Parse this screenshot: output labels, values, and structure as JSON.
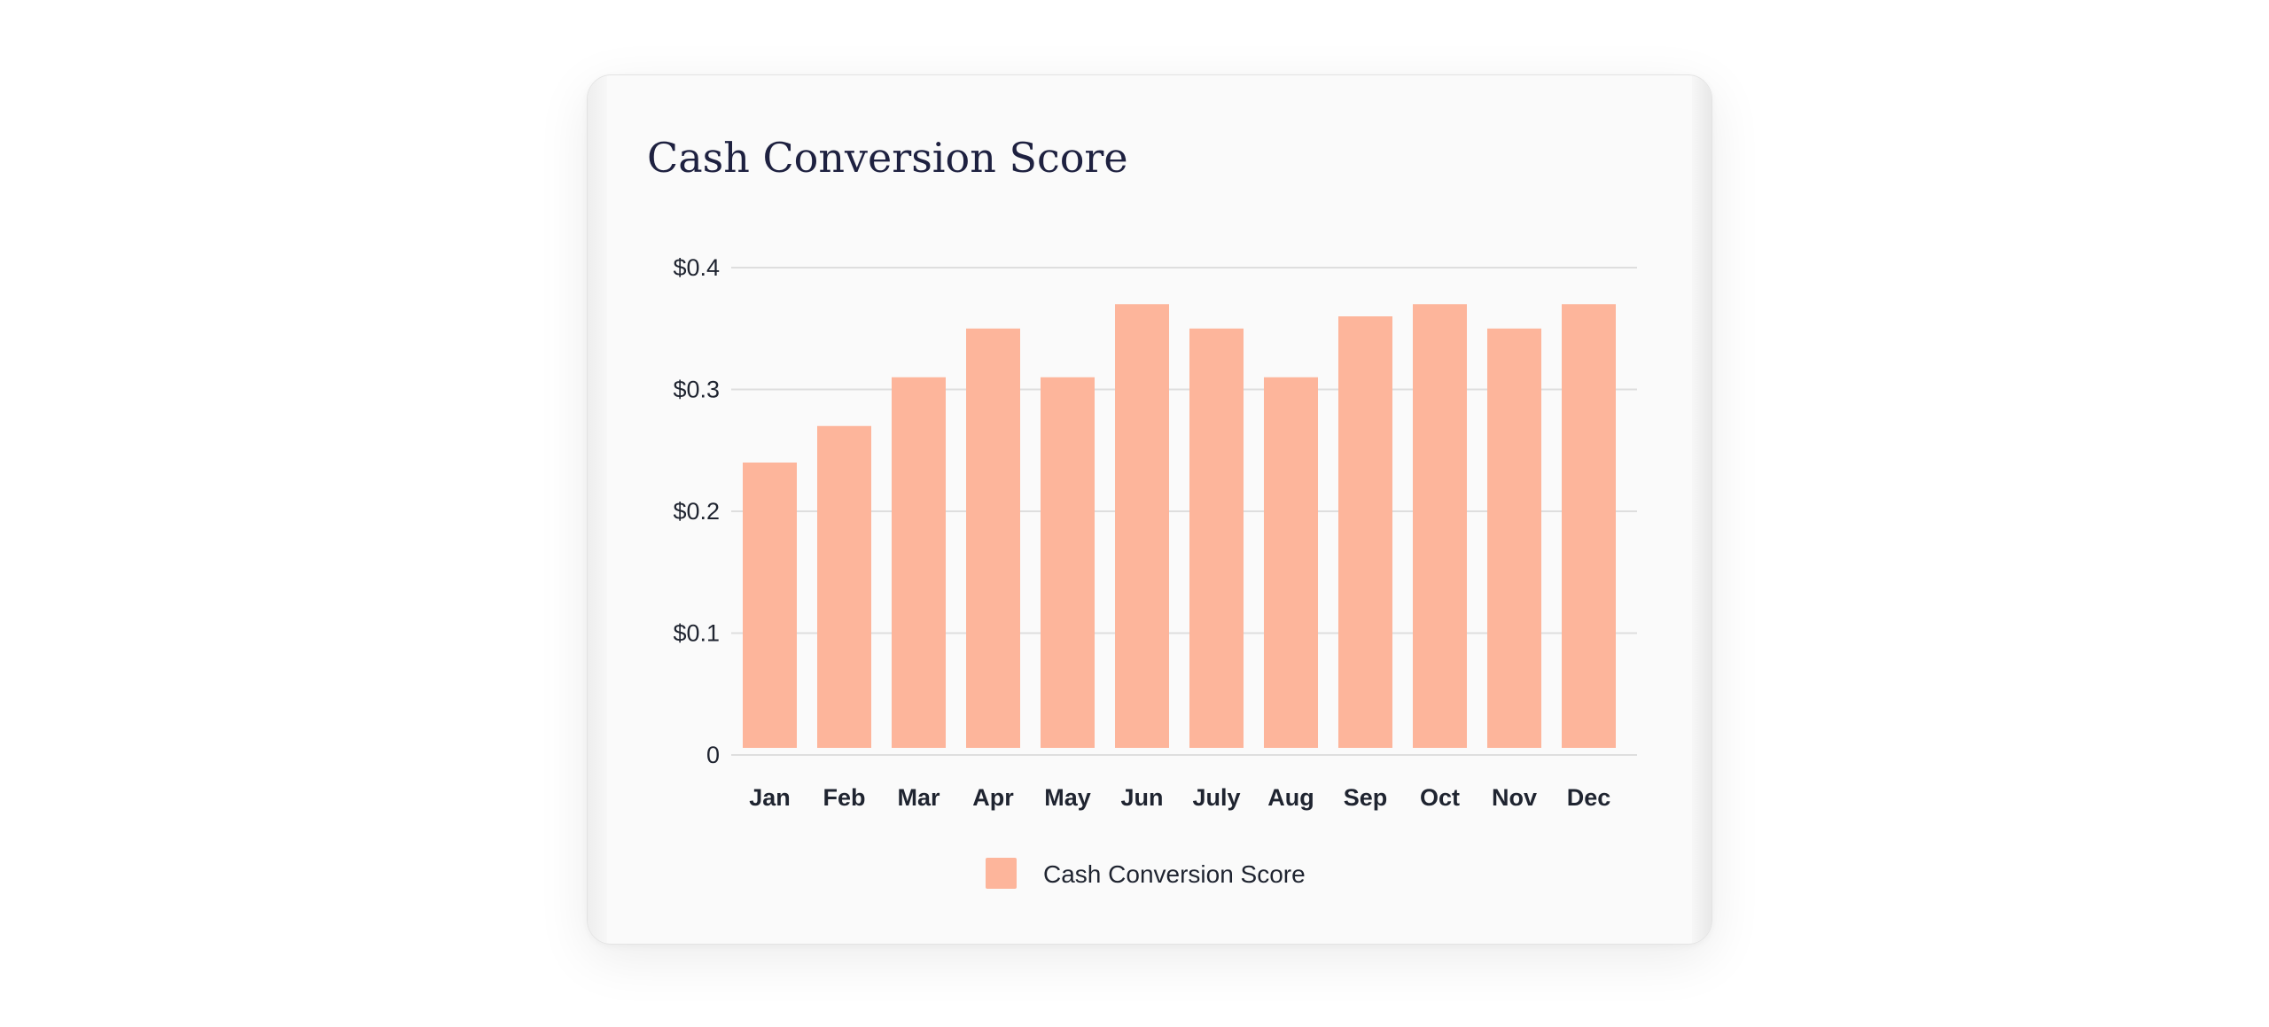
{
  "colors": {
    "bar": "#fdb59b",
    "grid": "#dedede",
    "text": "#1f2430",
    "title": "#1e2140"
  },
  "chart_data": {
    "type": "bar",
    "title": "Cash Conversion Score",
    "categories": [
      "Jan",
      "Feb",
      "Mar",
      "Apr",
      "May",
      "Jun",
      "July",
      "Aug",
      "Sep",
      "Oct",
      "Nov",
      "Dec"
    ],
    "series": [
      {
        "name": "Cash Conversion Score",
        "values": [
          0.24,
          0.27,
          0.31,
          0.35,
          0.31,
          0.37,
          0.35,
          0.31,
          0.36,
          0.37,
          0.35,
          0.37
        ]
      }
    ],
    "yticks": [
      0,
      0.1,
      0.2,
      0.3,
      0.4
    ],
    "ytick_labels": [
      "0",
      "$0.1",
      "$0.2",
      "$0.3",
      "$0.4"
    ],
    "ylim": [
      0,
      0.4
    ],
    "grid": true,
    "legend_position": "bottom-center"
  }
}
